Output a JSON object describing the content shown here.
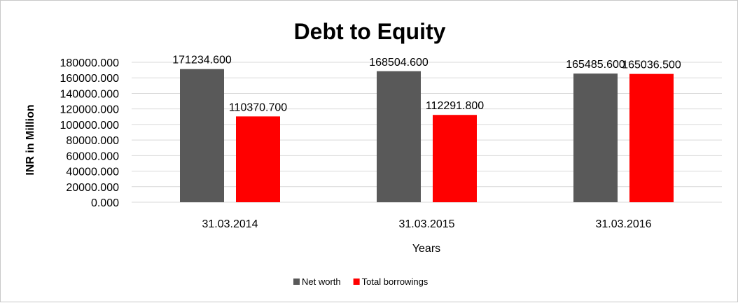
{
  "chart_data": {
    "type": "bar",
    "title": "Debt to Equity",
    "xlabel": "Years",
    "ylabel": "INR in Million",
    "categories": [
      "31.03.2014",
      "31.03.2015",
      "31.03.2016"
    ],
    "series": [
      {
        "name": "Net worth",
        "color": "#595959",
        "values": [
          171234.6,
          168504.6,
          165485.6
        ]
      },
      {
        "name": "Total borrowings",
        "color": "#ff0000",
        "values": [
          110370.7,
          112291.8,
          165036.5
        ]
      }
    ],
    "data_labels": [
      [
        "171234.600",
        "168504.600",
        "165485.600"
      ],
      [
        "110370.700",
        "112291.800",
        "165036.500"
      ]
    ],
    "ylim": [
      0,
      180000
    ],
    "yticks": [
      "0.000",
      "20000.000",
      "40000.000",
      "60000.000",
      "80000.000",
      "100000.000",
      "120000.000",
      "140000.000",
      "160000.000",
      "180000.000"
    ],
    "grid": true,
    "legend_position": "bottom"
  }
}
